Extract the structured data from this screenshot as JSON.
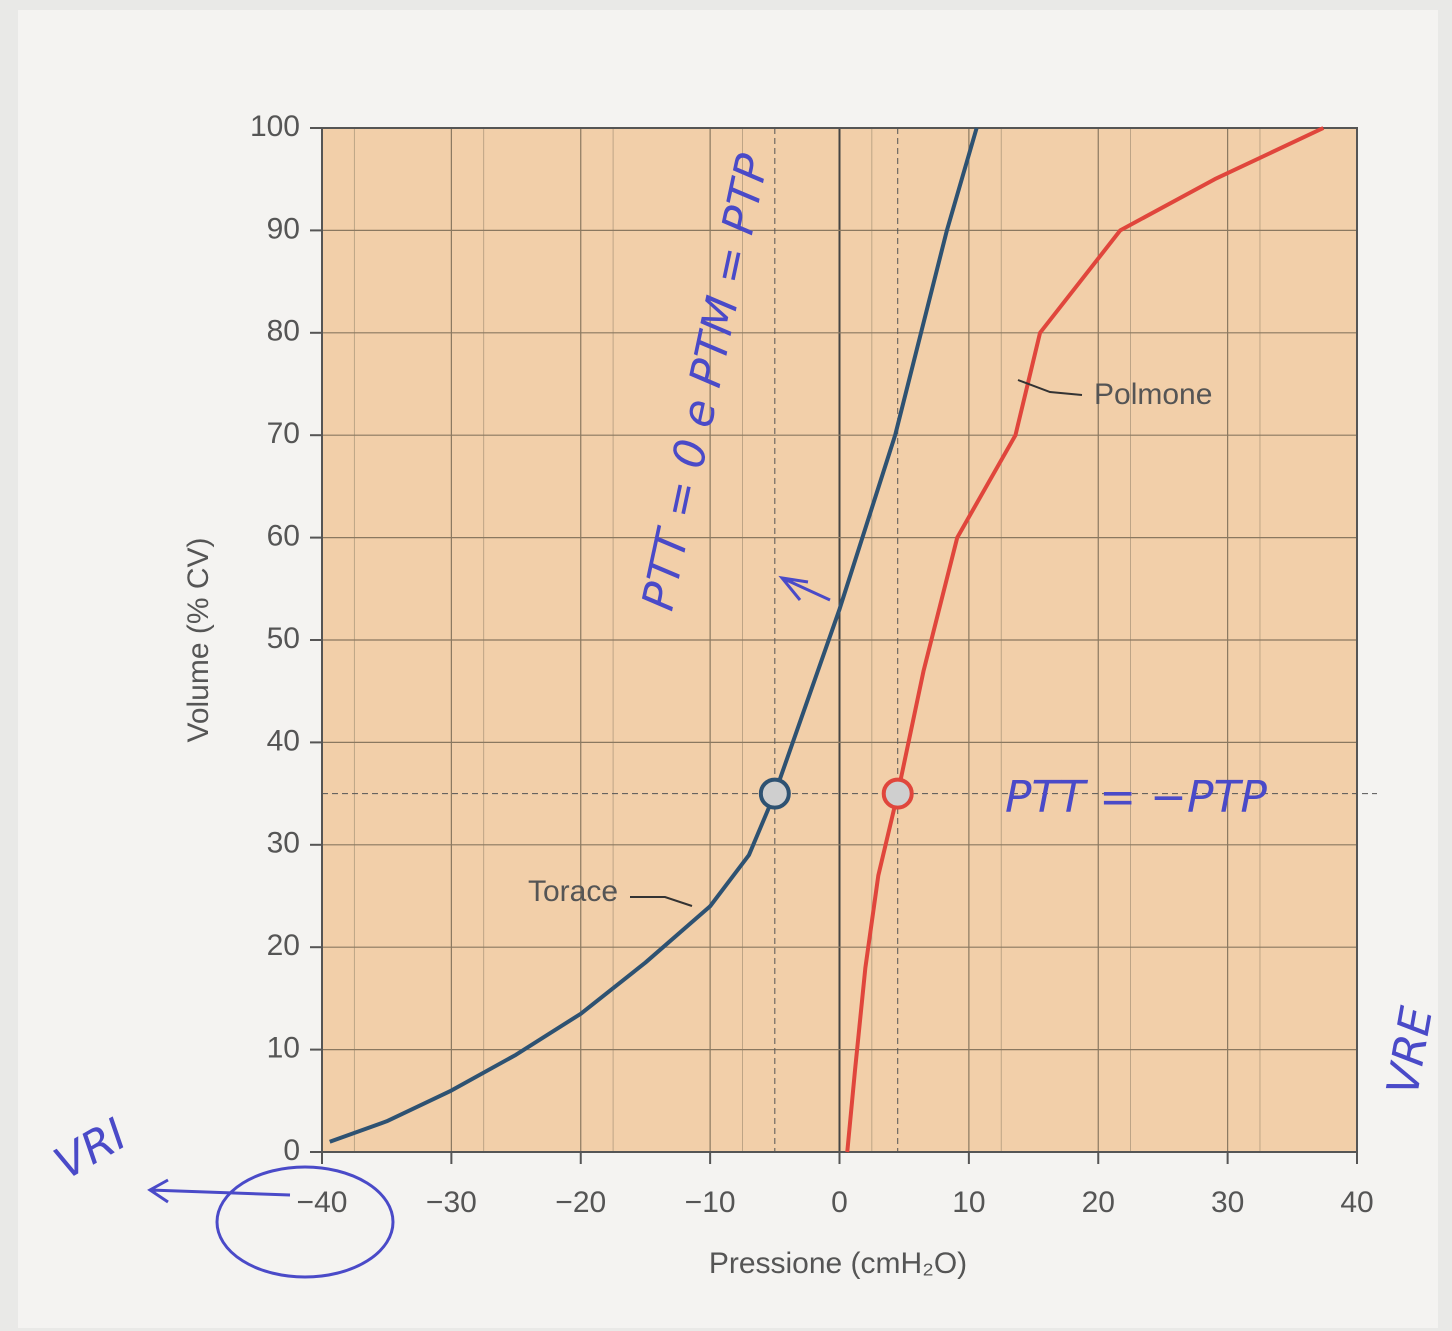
{
  "chart_data": {
    "type": "line",
    "x_label": "Pressione (cmH₂O)",
    "y_label": "Volume (% CV)",
    "xlim": [
      -40,
      40
    ],
    "ylim": [
      0,
      100
    ],
    "xticks": [
      {
        "value": -40,
        "label": "−40"
      },
      {
        "value": -30,
        "label": "−30"
      },
      {
        "value": -20,
        "label": "−20"
      },
      {
        "value": -10,
        "label": "−10"
      },
      0,
      10,
      20,
      30,
      40
    ],
    "yticks": [
      0,
      10,
      20,
      30,
      40,
      50,
      60,
      70,
      80,
      90,
      100
    ],
    "grid": true,
    "series": [
      {
        "name": "Torace",
        "color": "#2e5272",
        "x": [
          -39.4,
          -35,
          -30,
          -25,
          -20,
          -15,
          -10,
          -7,
          -5,
          -2.5,
          0,
          4.3,
          8.3,
          10.6
        ],
        "values": [
          1,
          3,
          6,
          9.5,
          13.5,
          18.5,
          24,
          29,
          35,
          44,
          53,
          70,
          90,
          100
        ]
      },
      {
        "name": "Polmone",
        "color": "#e0463c",
        "x": [
          0.6,
          1.2,
          2,
          3,
          4.5,
          6.5,
          9.1,
          13.6,
          15.5,
          21.7,
          29,
          37.4
        ],
        "values": [
          0,
          8,
          18,
          27,
          35,
          47,
          60,
          70,
          80,
          90,
          95,
          100
        ]
      }
    ],
    "points": {
      "x": [
        -5,
        4.5
      ],
      "values": [
        35,
        35
      ]
    },
    "annotations": [
      "PTT = 0  e  PTM = PTP",
      "PTT = −PTP",
      "VRI",
      "VRE"
    ]
  }
}
